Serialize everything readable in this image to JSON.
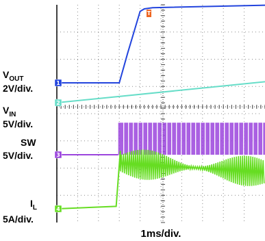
{
  "chart_data": {
    "type": "line",
    "title": "",
    "x_division": "1ms/div.",
    "horizontal_divisions": 10,
    "vertical_divisions": 8,
    "grid": true,
    "channels": [
      {
        "id": "1",
        "name": "V",
        "subscript": "OUT",
        "scale": "2V/div.",
        "color": "#2244dd",
        "marker": "1",
        "x": [
          0.0,
          3.0,
          3.4,
          4.0,
          4.2,
          4.6,
          10.0
        ],
        "y": [
          0.0,
          0.0,
          1.2,
          2.9,
          3.0,
          3.05,
          3.15
        ]
      },
      {
        "id": "2",
        "name": "V",
        "subscript": "IN",
        "scale": "5V/div.",
        "color": "#66ddc8",
        "marker": "2",
        "x": [
          0.0,
          10.0
        ],
        "y": [
          0.0,
          0.85
        ]
      },
      {
        "id": "3",
        "name": "SW",
        "subscript": "",
        "scale": "5V/div.",
        "color": "#9b44dd",
        "marker": "3",
        "x": [
          0.0,
          2.95,
          3.0,
          10.0
        ],
        "y": [
          0.0,
          0.0,
          1.3,
          1.3
        ]
      },
      {
        "id": "4",
        "name": "I",
        "subscript": "L",
        "scale": "5A/div.",
        "color": "#66dd22",
        "marker": "4",
        "x": [
          0.0,
          2.85,
          3.05,
          3.3,
          10.0
        ],
        "y": [
          0.0,
          0.1,
          2.35,
          1.85,
          1.2
        ]
      }
    ],
    "trigger_marker": "T",
    "trigger_color": "#ee6622"
  }
}
